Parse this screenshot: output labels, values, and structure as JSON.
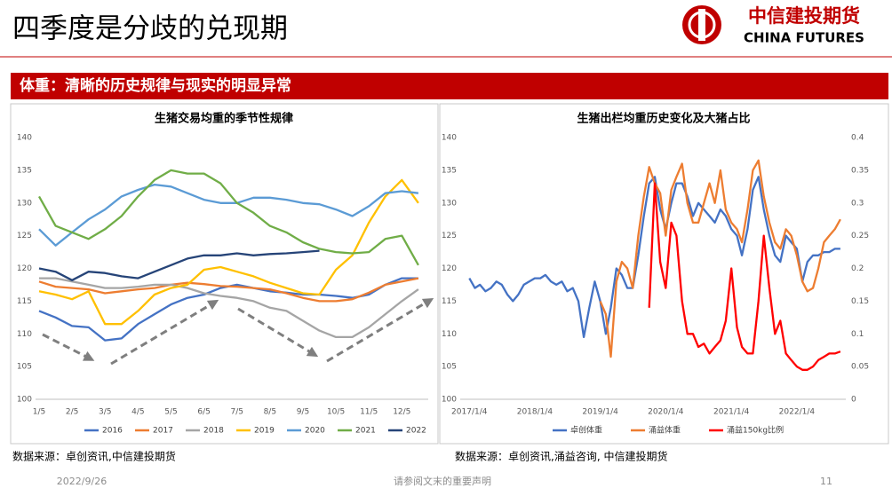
{
  "page": {
    "title": "四季度是分歧的兑现期",
    "logo_name": "中信建投期货",
    "logo_english": "CHINA FUTURES",
    "banner": "体重：清晰的历史规律与现实的明显异常",
    "sources": [
      "数据来源：卓创资讯,中信建投期货",
      "数据来源：卓创资讯,涌益咨询, 中信建投期货"
    ],
    "footer": {
      "date": "2022/9/26",
      "notice": "请参阅文末的重要声明",
      "page_number": "11"
    }
  },
  "chart_data": [
    {
      "type": "line",
      "title": "生猪交易均重的季节性规律",
      "categories": [
        "1/5",
        null,
        "2/5",
        null,
        "3/5",
        null,
        "4/5",
        null,
        "5/5",
        null,
        "6/5",
        null,
        "7/5",
        null,
        "8/5",
        null,
        "9/5",
        null,
        "10/5",
        null,
        "11/5",
        null,
        "12/5",
        null
      ],
      "ylim": [
        100,
        140
      ],
      "yticks": [
        100,
        105,
        110,
        115,
        120,
        125,
        130,
        135,
        140
      ],
      "grid": false,
      "series": [
        {
          "name": "2016",
          "color": "#4472c4",
          "values": [
            113.5,
            112.5,
            111.2,
            111,
            109,
            109.3,
            111.5,
            113,
            114.5,
            115.5,
            116,
            117,
            117.5,
            117,
            116.5,
            116.3,
            116,
            116,
            115.8,
            115.5,
            116,
            117.5,
            118.5,
            118.5
          ]
        },
        {
          "name": "2017",
          "color": "#ed7d31",
          "values": [
            118,
            117.2,
            117,
            116.8,
            116.2,
            116.5,
            116.8,
            117,
            117.5,
            117.8,
            117.6,
            117.3,
            117.2,
            117,
            116.8,
            116.2,
            115.5,
            115,
            115,
            115.3,
            116.3,
            117.5,
            118,
            118.5
          ]
        },
        {
          "name": "2018",
          "color": "#a5a5a5",
          "values": [
            118.5,
            118.5,
            118,
            117.5,
            117,
            117,
            117.2,
            117.5,
            117.5,
            117,
            116.2,
            115.8,
            115.5,
            115,
            114,
            113.5,
            112,
            110.5,
            109.5,
            109.5,
            111,
            113,
            115,
            116.8
          ]
        },
        {
          "name": "2019",
          "color": "#ffc000",
          "values": [
            116.5,
            116,
            115.3,
            116.5,
            111.5,
            111.5,
            113.5,
            116,
            117,
            117.5,
            119.8,
            120.2,
            119.5,
            118.8,
            117.8,
            117,
            116.2,
            116,
            119.8,
            122,
            127,
            131,
            133.5,
            130
          ]
        },
        {
          "name": "2020",
          "color": "#5b9bd5",
          "values": [
            126,
            123.5,
            125.5,
            127.5,
            129,
            131,
            132,
            132.8,
            132.5,
            131.5,
            130.5,
            130,
            130,
            130.8,
            130.8,
            130.5,
            130,
            129.8,
            129,
            128,
            129.5,
            131.5,
            131.8,
            131.5
          ]
        },
        {
          "name": "2021",
          "color": "#70ad47",
          "values": [
            131,
            126.5,
            125.5,
            124.5,
            126,
            128,
            131,
            133.5,
            135,
            134.5,
            134.5,
            133,
            130,
            128.5,
            126.5,
            125.5,
            124,
            123,
            122.5,
            122.3,
            122.5,
            124.5,
            125,
            120.5
          ]
        },
        {
          "name": "2022",
          "color": "#264478",
          "values": [
            120,
            119.5,
            118.2,
            119.5,
            119.3,
            118.8,
            118.5,
            119.5,
            120.5,
            121.5,
            122,
            122,
            122.3,
            122,
            122.2,
            122.3,
            122.5,
            122.7,
            null,
            null,
            null,
            null,
            null,
            null
          ]
        }
      ]
    },
    {
      "type": "line",
      "title": "生猪出栏均重历史变化及大猪占比",
      "x": [
        "2017/1/4",
        "2017/2/4",
        "2017/3/4",
        "2017/4/4",
        "2017/5/4",
        "2017/6/4",
        "2017/7/4",
        "2017/8/4",
        "2017/9/4",
        "2017/10/4",
        "2017/11/4",
        "2017/12/4",
        "2018/1/4",
        "2018/2/4",
        "2018/3/4",
        "2018/4/4",
        "2018/5/4",
        "2018/6/4",
        "2018/7/4",
        "2018/8/4",
        "2018/9/4",
        "2018/10/4",
        "2018/11/4",
        "2018/12/4",
        "2019/1/4",
        "2019/2/4",
        "2019/3/4",
        "2019/4/4",
        "2019/5/4",
        "2019/6/4",
        "2019/7/4",
        "2019/8/4",
        "2019/9/4",
        "2019/10/4",
        "2019/11/4",
        "2019/12/4",
        "2020/1/4",
        "2020/2/4",
        "2020/3/4",
        "2020/4/4",
        "2020/5/4",
        "2020/6/4",
        "2020/7/4",
        "2020/8/4",
        "2020/9/4",
        "2020/10/4",
        "2020/11/4",
        "2020/12/4",
        "2021/1/4",
        "2021/2/4",
        "2021/3/4",
        "2021/4/4",
        "2021/5/4",
        "2021/6/4",
        "2021/7/4",
        "2021/8/4",
        "2021/9/4",
        "2021/10/4",
        "2021/11/4",
        "2021/12/4",
        "2022/1/4",
        "2022/2/4",
        "2022/3/4",
        "2022/4/4",
        "2022/5/4",
        "2022/6/4",
        "2022/7/4",
        "2022/8/4",
        "2022/9/4"
      ],
      "xlim": [
        "2016/12/4",
        "2022/10/4"
      ],
      "xticks": [
        "2017/1/4",
        "2018/1/4",
        "2019/1/4",
        "2020/1/4",
        "2021/1/4",
        "2022/1/4"
      ],
      "ylim": [
        100,
        140
      ],
      "yticks": [
        100,
        105,
        110,
        115,
        120,
        125,
        130,
        135,
        140
      ],
      "y2lim": [
        0,
        0.4
      ],
      "y2ticks": [
        0,
        0.05,
        0.1,
        0.15,
        0.2,
        0.25,
        0.3,
        0.35,
        0.4
      ],
      "grid": false,
      "series": [
        {
          "name": "卓创体重",
          "color": "#4472c4",
          "values": [
            118.5,
            117,
            117.5,
            116.5,
            117,
            118,
            117.5,
            116,
            115,
            116,
            117.5,
            118,
            118.5,
            118.5,
            119,
            118,
            117.5,
            118,
            116.5,
            117,
            115,
            109.5,
            114,
            118,
            115,
            110,
            114,
            120,
            119,
            117,
            117,
            122,
            128,
            133,
            134,
            129,
            126,
            130,
            133,
            133,
            131,
            128,
            130,
            129,
            128,
            127,
            129,
            128,
            126,
            125,
            122,
            126,
            132,
            134,
            129,
            125,
            122,
            121,
            125,
            124,
            123,
            118,
            121,
            122,
            122,
            122.5,
            122.5,
            123,
            123
          ]
        },
        {
          "name": "涌益体重",
          "color": "#ed7d31",
          "values": [
            null,
            null,
            null,
            null,
            null,
            null,
            null,
            null,
            null,
            null,
            null,
            null,
            null,
            null,
            null,
            null,
            null,
            null,
            null,
            null,
            null,
            null,
            null,
            null,
            115,
            113,
            106.5,
            118,
            121,
            120,
            117,
            125,
            131,
            135.5,
            133,
            131.5,
            125,
            132,
            134,
            136,
            130,
            127,
            127,
            130,
            133,
            130,
            135,
            129,
            127,
            126,
            124,
            129,
            135,
            136.5,
            131,
            127,
            124,
            123,
            126,
            125,
            122,
            118,
            116.5,
            117,
            120,
            124,
            125,
            126,
            127.5
          ]
        },
        {
          "name": "涌益150kg比例",
          "color": "#ff0000",
          "axis": "y2",
          "values": [
            null,
            null,
            null,
            null,
            null,
            null,
            null,
            null,
            null,
            null,
            null,
            null,
            null,
            null,
            null,
            null,
            null,
            null,
            null,
            null,
            null,
            null,
            null,
            null,
            null,
            null,
            null,
            null,
            null,
            null,
            null,
            null,
            null,
            0.14,
            0.33,
            0.21,
            0.17,
            0.27,
            0.25,
            0.15,
            0.1,
            0.1,
            0.08,
            0.085,
            0.07,
            0.08,
            0.09,
            0.12,
            0.2,
            0.11,
            0.08,
            0.07,
            0.07,
            0.15,
            0.25,
            0.17,
            0.1,
            0.12,
            0.07,
            0.06,
            0.05,
            0.045,
            0.045,
            0.05,
            0.06,
            0.065,
            0.07,
            0.07,
            0.073
          ]
        }
      ]
    }
  ]
}
